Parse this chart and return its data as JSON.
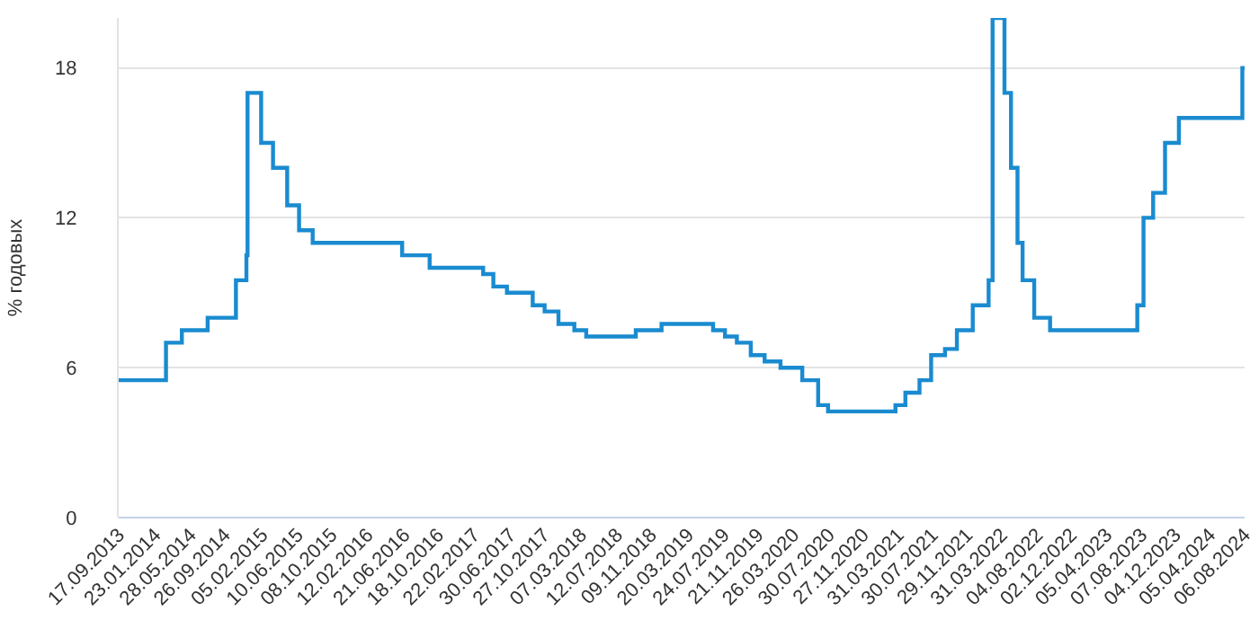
{
  "chart_data": {
    "type": "step",
    "ylabel": "% годовых",
    "x": [
      "2013-09-17",
      "2014-03-03",
      "2014-04-28",
      "2014-07-28",
      "2014-11-05",
      "2014-12-12",
      "2014-12-16",
      "2015-02-02",
      "2015-03-16",
      "2015-05-05",
      "2015-06-16",
      "2015-08-03",
      "2016-06-14",
      "2016-09-19",
      "2017-03-27",
      "2017-05-02",
      "2017-06-19",
      "2017-09-18",
      "2017-10-30",
      "2017-12-18",
      "2018-02-12",
      "2018-03-26",
      "2018-09-17",
      "2018-12-17",
      "2019-06-17",
      "2019-07-29",
      "2019-09-09",
      "2019-10-28",
      "2019-12-16",
      "2020-02-10",
      "2020-04-27",
      "2020-06-22",
      "2020-07-27",
      "2021-03-22",
      "2021-04-26",
      "2021-06-15",
      "2021-07-26",
      "2021-09-13",
      "2021-10-25",
      "2021-12-20",
      "2022-02-14",
      "2022-02-28",
      "2022-04-11",
      "2022-05-04",
      "2022-05-27",
      "2022-06-14",
      "2022-07-25",
      "2022-09-19",
      "2023-07-24",
      "2023-08-15",
      "2023-09-18",
      "2023-10-30",
      "2023-12-18",
      "2024-07-29",
      "2024-08-06"
    ],
    "series": [
      {
        "color": "#1a8bd0",
        "values": [
          5.5,
          7,
          7.5,
          8,
          9.5,
          10.5,
          17,
          15,
          14,
          12.5,
          11.5,
          11,
          10.5,
          10,
          9.75,
          9.25,
          9,
          8.5,
          8.25,
          7.75,
          7.5,
          7.25,
          7.5,
          7.75,
          7.5,
          7.25,
          7,
          6.5,
          6.25,
          6,
          5.5,
          4.5,
          4.25,
          4.5,
          5,
          5.5,
          6.5,
          6.75,
          7.5,
          8.5,
          9.5,
          20,
          17,
          14,
          11,
          9.5,
          8,
          7.5,
          8.5,
          12,
          13,
          15,
          16,
          18,
          18
        ]
      }
    ],
    "xlim": [
      "2013-09-17",
      "2024-08-06"
    ],
    "xticks": [
      {
        "value": "2013-09-17",
        "label": "17.09.2013"
      },
      {
        "value": "2014-01-23",
        "label": "23.01.2014"
      },
      {
        "value": "2014-05-28",
        "label": "28.05.2014"
      },
      {
        "value": "2014-09-26",
        "label": "26.09.2014"
      },
      {
        "value": "2015-02-05",
        "label": "05.02.2015"
      },
      {
        "value": "2015-06-10",
        "label": "10.06.2015"
      },
      {
        "value": "2015-10-08",
        "label": "08.10.2015"
      },
      {
        "value": "2016-02-12",
        "label": "12.02.2016"
      },
      {
        "value": "2016-06-21",
        "label": "21.06.2016"
      },
      {
        "value": "2016-10-18",
        "label": "18.10.2016"
      },
      {
        "value": "2017-02-22",
        "label": "22.02.2017"
      },
      {
        "value": "2017-06-30",
        "label": "30.06.2017"
      },
      {
        "value": "2017-10-27",
        "label": "27.10.2017"
      },
      {
        "value": "2018-03-07",
        "label": "07.03.2018"
      },
      {
        "value": "2018-07-12",
        "label": "12.07.2018"
      },
      {
        "value": "2018-11-09",
        "label": "09.11.2018"
      },
      {
        "value": "2019-03-20",
        "label": "20.03.2019"
      },
      {
        "value": "2019-07-24",
        "label": "24.07.2019"
      },
      {
        "value": "2019-11-21",
        "label": "21.11.2019"
      },
      {
        "value": "2020-03-26",
        "label": "26.03.2020"
      },
      {
        "value": "2020-07-30",
        "label": "30.07.2020"
      },
      {
        "value": "2020-11-27",
        "label": "27.11.2020"
      },
      {
        "value": "2021-03-31",
        "label": "31.03.2021"
      },
      {
        "value": "2021-07-30",
        "label": "30.07.2021"
      },
      {
        "value": "2021-11-29",
        "label": "29.11.2021"
      },
      {
        "value": "2022-03-31",
        "label": "31.03.2022"
      },
      {
        "value": "2022-08-04",
        "label": "04.08.2022"
      },
      {
        "value": "2022-12-02",
        "label": "02.12.2022"
      },
      {
        "value": "2023-04-05",
        "label": "05.04.2023"
      },
      {
        "value": "2023-08-07",
        "label": "07.08.2023"
      },
      {
        "value": "2023-12-04",
        "label": "04.12.2023"
      },
      {
        "value": "2024-04-05",
        "label": "05.04.2024"
      },
      {
        "value": "2024-08-06",
        "label": "06.08.2024"
      }
    ],
    "ylim": [
      0,
      20
    ],
    "yticks": [
      0,
      6,
      12,
      18
    ],
    "grid": "y",
    "legend": false,
    "marker": "none",
    "line_style": "solid"
  }
}
